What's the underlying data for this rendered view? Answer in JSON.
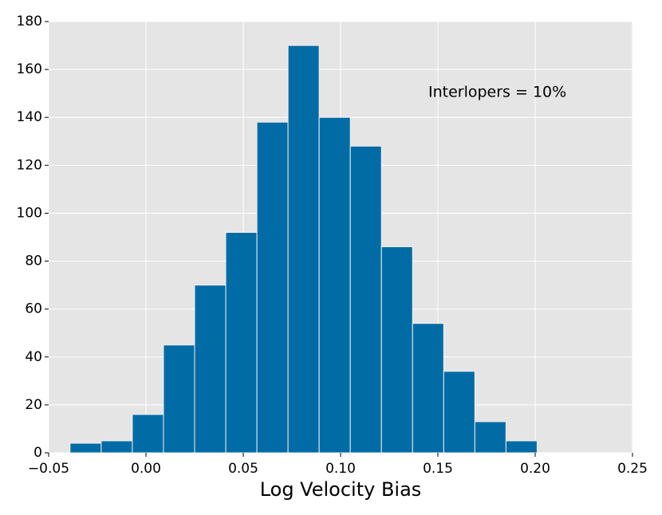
{
  "chart_data": {
    "type": "histogram",
    "xlabel": "Log Velocity Bias",
    "annotation": "Interlopers = 10%",
    "bins": [
      -0.039,
      -0.023,
      -0.007,
      0.009,
      0.025,
      0.041,
      0.057,
      0.073,
      0.089,
      0.105,
      0.121,
      0.137,
      0.153,
      0.169,
      0.185,
      0.201
    ],
    "values": [
      4,
      5,
      16,
      45,
      70,
      92,
      138,
      170,
      140,
      128,
      86,
      54,
      34,
      13,
      5
    ],
    "color": "#006ba4",
    "xlim": [
      -0.05,
      0.25
    ],
    "xticks": [
      {
        "value": -0.05,
        "label": "−0.05"
      },
      {
        "value": 0,
        "label": "0.00"
      },
      0.05,
      {
        "value": 0.1,
        "label": "0.10"
      },
      0.15,
      {
        "value": 0.2,
        "label": "0.20"
      },
      0.25
    ],
    "ylim": [
      0,
      180
    ],
    "yticks": [
      0,
      20,
      40,
      60,
      80,
      100,
      120,
      140,
      160,
      180
    ],
    "grid": true
  }
}
